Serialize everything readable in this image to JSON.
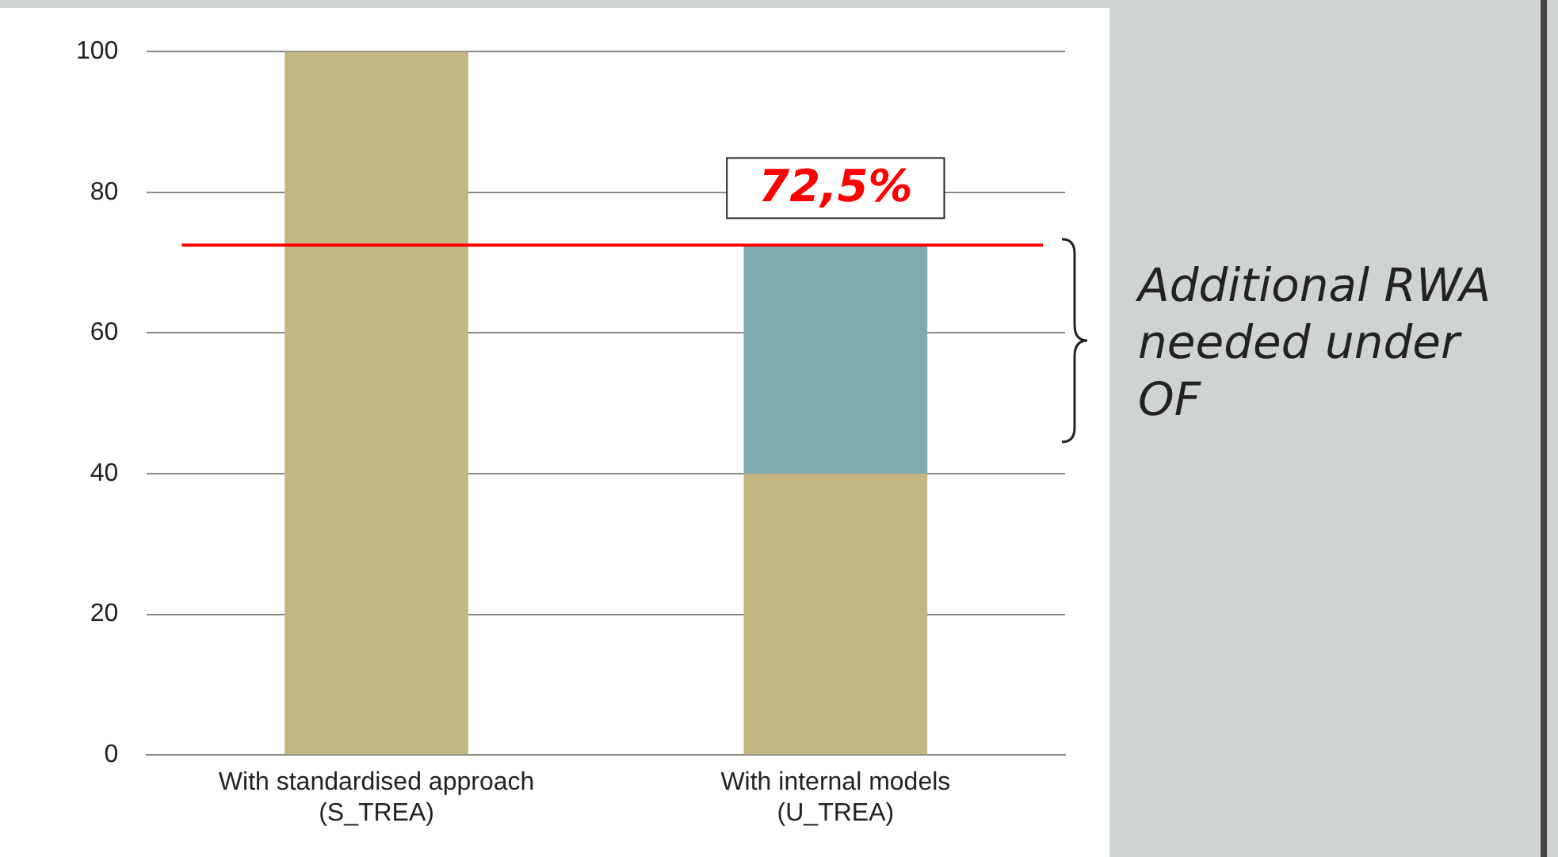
{
  "chart_data": {
    "type": "bar",
    "stacked": true,
    "categories": [
      "With standardised approach\n(S_TREA)",
      "With internal models\n(U_TREA)"
    ],
    "series": [
      {
        "color": "#c4b784",
        "values": [
          100,
          40
        ]
      },
      {
        "color": "#7faab0",
        "values": [
          null,
          32.5
        ]
      }
    ],
    "ylim": [
      0,
      100
    ],
    "yticks": [
      0,
      20,
      40,
      60,
      80,
      100
    ],
    "grid": "y",
    "legend": false,
    "ref_lines": [
      {
        "axis": "y",
        "value": 72.5,
        "label": "72,5%",
        "color": "#ff0000"
      }
    ],
    "annotations": [
      "Additional RWA\nneeded under\nOF"
    ]
  }
}
